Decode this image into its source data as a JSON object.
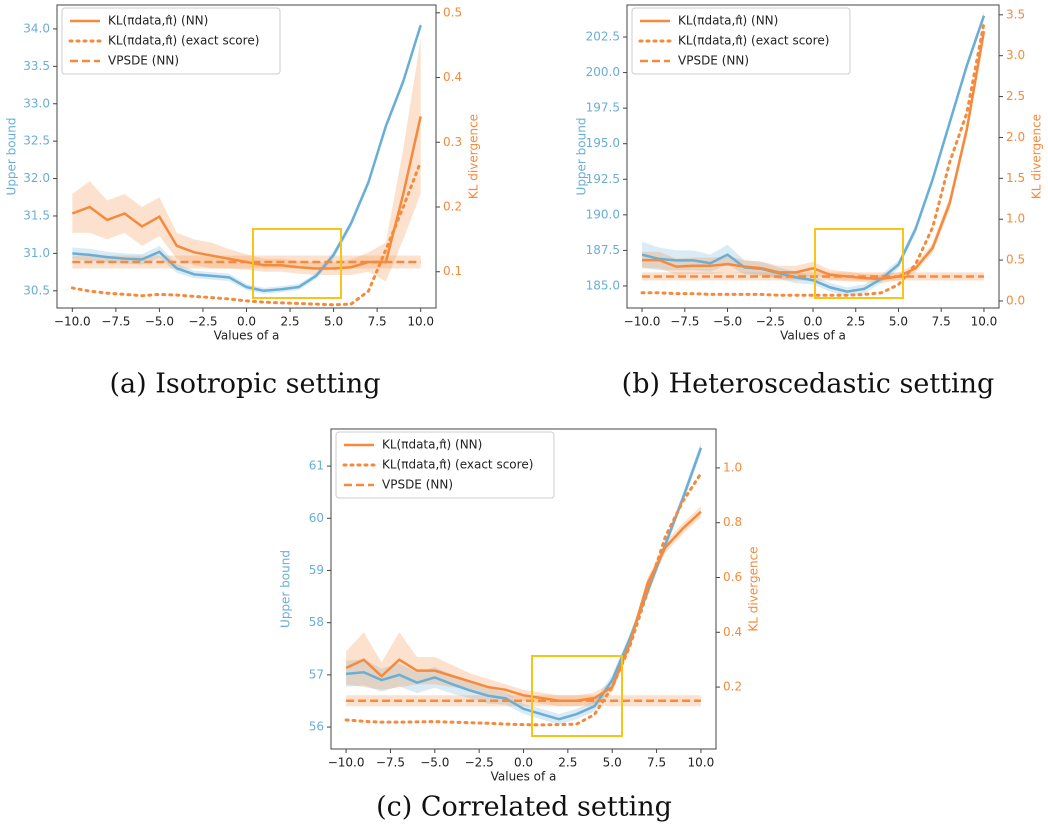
{
  "chart_data": [
    {
      "type": "line",
      "caption": "(a) Isotropic setting",
      "xlabel": "Values of a",
      "ylabel": "Upper bound",
      "y2label": "KL divergence",
      "legend": "upper left",
      "x": [
        -10,
        -9,
        -8,
        -7,
        -6,
        -5,
        -4,
        -3,
        -2,
        -1,
        0,
        1,
        2,
        3,
        4,
        5,
        6,
        7,
        8,
        9,
        10
      ],
      "xlim": [
        -10.88,
        10.88
      ],
      "xticks": [
        {
          "value": -10,
          "label": "−10.0"
        },
        {
          "value": -7.5,
          "label": "−7.5"
        },
        {
          "value": -5,
          "label": "−5.0"
        },
        {
          "value": -2.5,
          "label": "−2.5"
        },
        {
          "value": 0,
          "label": "0.0"
        },
        2.5,
        {
          "value": 5,
          "label": "5.0"
        },
        7.5,
        {
          "value": 10,
          "label": "10.0"
        }
      ],
      "ylim": [
        30.27,
        34.32
      ],
      "yticks": [
        30.5,
        {
          "value": 31,
          "label": "31.0"
        },
        31.5,
        {
          "value": 32,
          "label": "32.0"
        },
        32.5,
        {
          "value": 33,
          "label": "33.0"
        },
        33.5,
        {
          "value": 34,
          "label": "34.0"
        }
      ],
      "y2lim": [
        0.044,
        0.512
      ],
      "y2ticks": [
        0.1,
        0.2,
        0.3,
        0.4,
        0.5
      ],
      "series": [
        {
          "color": "#6aaed6",
          "style": "solid",
          "values": [
            31.0,
            30.98,
            30.95,
            30.93,
            30.92,
            31.02,
            30.8,
            30.72,
            30.7,
            30.68,
            30.55,
            30.5,
            30.52,
            30.55,
            30.7,
            30.98,
            31.4,
            31.95,
            32.7,
            33.3,
            34.05
          ],
          "errors": [
            0.08,
            0.08,
            0.07,
            0.07,
            0.07,
            0.08,
            0.06,
            0.05,
            0.05,
            0.05,
            0.04,
            0.04,
            0.04,
            0.04,
            0.04,
            0.05,
            0.05,
            0.05,
            0.05,
            0.05,
            0.05
          ]
        },
        {
          "name": "KL(πdata,π̂) (NN)",
          "color": "#f58a3c",
          "style": "solid",
          "axis": "y2",
          "values": [
            0.19,
            0.2,
            0.18,
            0.19,
            0.17,
            0.185,
            0.14,
            0.13,
            0.125,
            0.12,
            0.115,
            0.11,
            0.11,
            0.107,
            0.105,
            0.105,
            0.107,
            0.115,
            0.115,
            0.22,
            0.34
          ],
          "errors": [
            0.03,
            0.04,
            0.03,
            0.03,
            0.03,
            0.03,
            0.02,
            0.02,
            0.02,
            0.015,
            0.012,
            0.01,
            0.01,
            0.01,
            0.01,
            0.01,
            0.012,
            0.015,
            0.03,
            0.07,
            0.12
          ]
        },
        {
          "name": "KL(πdata,π̂) (exact score)",
          "color": "#f58a3c",
          "style": "dotted",
          "axis": "y2",
          "values": [
            0.075,
            0.07,
            0.067,
            0.065,
            0.063,
            0.065,
            0.064,
            0.062,
            0.06,
            0.058,
            0.055,
            0.053,
            0.052,
            0.051,
            0.05,
            0.049,
            0.05,
            0.07,
            0.134,
            0.2,
            0.27
          ]
        },
        {
          "name": "VPSDE (NN)",
          "color": "#f58a3c",
          "style": "dashed",
          "axis": "y2",
          "values": [
            0.115,
            0.115,
            0.115,
            0.115,
            0.115,
            0.115,
            0.115,
            0.115,
            0.115,
            0.115,
            0.115,
            0.115,
            0.115,
            0.115,
            0.115,
            0.115,
            0.115,
            0.115,
            0.115,
            0.115,
            0.115
          ],
          "errors": [
            0.01,
            0.01,
            0.01,
            0.01,
            0.01,
            0.01,
            0.01,
            0.01,
            0.01,
            0.01,
            0.01,
            0.01,
            0.01,
            0.01,
            0.01,
            0.01,
            0.01,
            0.01,
            0.01,
            0.01,
            0.01
          ]
        }
      ]
    },
    {
      "type": "line",
      "caption": "(b) Heteroscedastic setting",
      "xlabel": "Values of a",
      "ylabel": "Upper bound",
      "y2label": "KL divergence",
      "legend": "upper left",
      "x": [
        -10,
        -9,
        -8,
        -7,
        -6,
        -5,
        -4,
        -3,
        -2,
        -1,
        0,
        1,
        2,
        3,
        4,
        5,
        6,
        7,
        8,
        9,
        10
      ],
      "xlim": [
        -10.88,
        10.88
      ],
      "xticks": [
        {
          "value": -10,
          "label": "−10.0"
        },
        {
          "value": -7.5,
          "label": "−7.5"
        },
        {
          "value": -5,
          "label": "−5.0"
        },
        {
          "value": -2.5,
          "label": "−2.5"
        },
        {
          "value": 0,
          "label": "0.0"
        },
        2.5,
        {
          "value": 5,
          "label": "5.0"
        },
        7.5,
        {
          "value": 10,
          "label": "10.0"
        }
      ],
      "ylim": [
        183.45,
        204.75
      ],
      "yticks": [
        {
          "value": 185,
          "label": "185.0"
        },
        187.5,
        {
          "value": 190,
          "label": "190.0"
        },
        192.5,
        {
          "value": 195,
          "label": "195.0"
        },
        197.5,
        {
          "value": 200,
          "label": "200.0"
        },
        202.5
      ],
      "y2lim": [
        -0.086,
        3.62
      ],
      "y2ticks": [
        {
          "value": 0,
          "label": "0.0"
        },
        0.5,
        {
          "value": 1,
          "label": "1.0"
        },
        1.5,
        {
          "value": 2,
          "label": "2.0"
        },
        2.5,
        {
          "value": 3,
          "label": "3.0"
        },
        3.5
      ],
      "series": [
        {
          "color": "#6aaed6",
          "style": "solid",
          "values": [
            187.2,
            186.9,
            186.8,
            186.8,
            186.6,
            187.2,
            186.3,
            186.2,
            185.9,
            185.6,
            185.4,
            184.9,
            184.6,
            184.8,
            185.5,
            186.5,
            189,
            192.5,
            196.5,
            200.5,
            204
          ],
          "errors": [
            0.9,
            0.8,
            0.7,
            0.7,
            0.6,
            0.7,
            0.5,
            0.5,
            0.4,
            0.4,
            0.3,
            0.3,
            0.3,
            0.3,
            0.3,
            0.3,
            0.3,
            0.3,
            0.3,
            0.3,
            0.3
          ]
        },
        {
          "name": "KL(πdata,π̂) (NN)",
          "color": "#f58a3c",
          "style": "solid",
          "axis": "y2",
          "values": [
            0.5,
            0.5,
            0.42,
            0.43,
            0.43,
            0.45,
            0.42,
            0.4,
            0.35,
            0.35,
            0.4,
            0.32,
            0.3,
            0.28,
            0.27,
            0.3,
            0.4,
            0.65,
            1.2,
            2.1,
            3.3
          ],
          "errors": [
            0.1,
            0.1,
            0.1,
            0.1,
            0.1,
            0.1,
            0.08,
            0.08,
            0.08,
            0.08,
            0.08,
            0.06,
            0.06,
            0.05,
            0.05,
            0.05,
            0.05,
            0.06,
            0.08,
            0.08,
            0.1
          ]
        },
        {
          "name": "KL(πdata,π̂) (exact score)",
          "color": "#f58a3c",
          "style": "dotted",
          "axis": "y2",
          "values": [
            0.1,
            0.1,
            0.09,
            0.09,
            0.08,
            0.08,
            0.08,
            0.08,
            0.07,
            0.07,
            0.07,
            0.07,
            0.07,
            0.08,
            0.1,
            0.2,
            0.45,
            0.9,
            1.7,
            2.3,
            3.4
          ]
        },
        {
          "name": "VPSDE (NN)",
          "color": "#f58a3c",
          "style": "dashed",
          "axis": "y2",
          "values": [
            0.3,
            0.3,
            0.3,
            0.3,
            0.3,
            0.3,
            0.3,
            0.3,
            0.3,
            0.3,
            0.3,
            0.3,
            0.3,
            0.3,
            0.3,
            0.3,
            0.3,
            0.3,
            0.3,
            0.3,
            0.3
          ],
          "errors": [
            0.05,
            0.05,
            0.05,
            0.05,
            0.05,
            0.05,
            0.05,
            0.05,
            0.05,
            0.05,
            0.05,
            0.05,
            0.05,
            0.05,
            0.05,
            0.05,
            0.05,
            0.05,
            0.05,
            0.05,
            0.05
          ]
        }
      ]
    },
    {
      "type": "line",
      "caption": "(c) Correlated setting",
      "xlabel": "Values of a",
      "ylabel": "Upper bound",
      "y2label": "KL divergence",
      "legend": "upper left",
      "x": [
        -10,
        -9,
        -8,
        -7,
        -6,
        -5,
        -4,
        -3,
        -2,
        -1,
        0,
        1,
        2,
        3,
        4,
        5,
        6,
        7,
        8,
        9,
        10
      ],
      "xlim": [
        -10.85,
        10.85
      ],
      "xticks": [
        {
          "value": -10,
          "label": "−10.0"
        },
        {
          "value": -7.5,
          "label": "−7.5"
        },
        {
          "value": -5,
          "label": "−5.0"
        },
        {
          "value": -2.5,
          "label": "−2.5"
        },
        {
          "value": 0,
          "label": "0.0"
        },
        2.5,
        {
          "value": 5,
          "label": "5.0"
        },
        7.5,
        {
          "value": 10,
          "label": "10.0"
        }
      ],
      "ylim": [
        55.58,
        61.71
      ],
      "yticks": [
        56,
        57,
        58,
        59,
        60,
        61
      ],
      "y2lim": [
        -0.026,
        1.142
      ],
      "y2ticks": [
        0.2,
        0.4,
        0.6,
        0.8,
        {
          "value": 1,
          "label": "1.0"
        }
      ],
      "series": [
        {
          "color": "#6aaed6",
          "style": "solid",
          "values": [
            57.02,
            57.05,
            56.9,
            57.0,
            56.85,
            56.95,
            56.82,
            56.7,
            56.6,
            56.55,
            56.35,
            56.25,
            56.15,
            56.25,
            56.4,
            56.9,
            57.7,
            58.6,
            59.5,
            60.4,
            61.35
          ],
          "errors": [
            0.25,
            0.25,
            0.22,
            0.22,
            0.2,
            0.2,
            0.18,
            0.15,
            0.15,
            0.12,
            0.1,
            0.1,
            0.1,
            0.1,
            0.1,
            0.1,
            0.1,
            0.1,
            0.1,
            0.1,
            0.1
          ]
        },
        {
          "name": "KL(πdata,π̂) (NN)",
          "color": "#f58a3c",
          "style": "solid",
          "axis": "y2",
          "values": [
            0.27,
            0.3,
            0.24,
            0.3,
            0.26,
            0.26,
            0.24,
            0.22,
            0.2,
            0.19,
            0.17,
            0.16,
            0.15,
            0.15,
            0.16,
            0.2,
            0.36,
            0.58,
            0.71,
            0.78,
            0.84
          ],
          "errors": [
            0.06,
            0.1,
            0.05,
            0.1,
            0.05,
            0.05,
            0.04,
            0.03,
            0.03,
            0.02,
            0.02,
            0.02,
            0.02,
            0.02,
            0.02,
            0.02,
            0.02,
            0.02,
            0.02,
            0.02,
            0.02
          ]
        },
        {
          "name": "KL(πdata,π̂) (exact score)",
          "color": "#f58a3c",
          "style": "dotted",
          "axis": "y2",
          "values": [
            0.08,
            0.075,
            0.072,
            0.072,
            0.073,
            0.074,
            0.072,
            0.07,
            0.068,
            0.065,
            0.063,
            0.062,
            0.063,
            0.065,
            0.1,
            0.2,
            0.35,
            0.55,
            0.75,
            0.88,
            0.98
          ]
        },
        {
          "name": "VPSDE (NN)",
          "color": "#f58a3c",
          "style": "dashed",
          "axis": "y2",
          "values": [
            0.15,
            0.15,
            0.15,
            0.15,
            0.15,
            0.15,
            0.15,
            0.15,
            0.15,
            0.15,
            0.15,
            0.15,
            0.15,
            0.15,
            0.15,
            0.15,
            0.15,
            0.15,
            0.15,
            0.15,
            0.15
          ],
          "errors": [
            0.02,
            0.02,
            0.02,
            0.02,
            0.02,
            0.02,
            0.02,
            0.02,
            0.02,
            0.02,
            0.02,
            0.02,
            0.02,
            0.02,
            0.02,
            0.02,
            0.02,
            0.02,
            0.02,
            0.02,
            0.02
          ]
        }
      ]
    }
  ]
}
